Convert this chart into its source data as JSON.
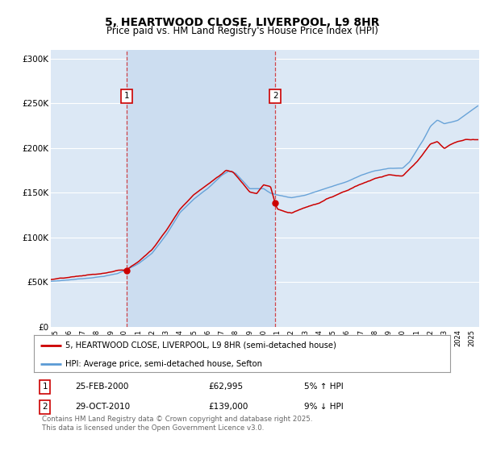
{
  "title": "5, HEARTWOOD CLOSE, LIVERPOOL, L9 8HR",
  "subtitle": "Price paid vs. HM Land Registry's House Price Index (HPI)",
  "ylim": [
    0,
    310000
  ],
  "yticks": [
    0,
    50000,
    100000,
    150000,
    200000,
    250000,
    300000
  ],
  "ytick_labels": [
    "£0",
    "£50K",
    "£100K",
    "£150K",
    "£200K",
    "£250K",
    "£300K"
  ],
  "bg_color": "#dce8f5",
  "shade_color": "#ccddf0",
  "grid_color": "#ffffff",
  "red_color": "#cc0000",
  "blue_color": "#5b9bd5",
  "marker1_x": 2000.15,
  "marker1_y": 62995,
  "marker2_x": 2010.83,
  "marker2_y": 139000,
  "legend_red": "5, HEARTWOOD CLOSE, LIVERPOOL, L9 8HR (semi-detached house)",
  "legend_blue": "HPI: Average price, semi-detached house, Sefton",
  "footer": "Contains HM Land Registry data © Crown copyright and database right 2025.\nThis data is licensed under the Open Government Licence v3.0.",
  "xmin": 1994.7,
  "xmax": 2025.5
}
